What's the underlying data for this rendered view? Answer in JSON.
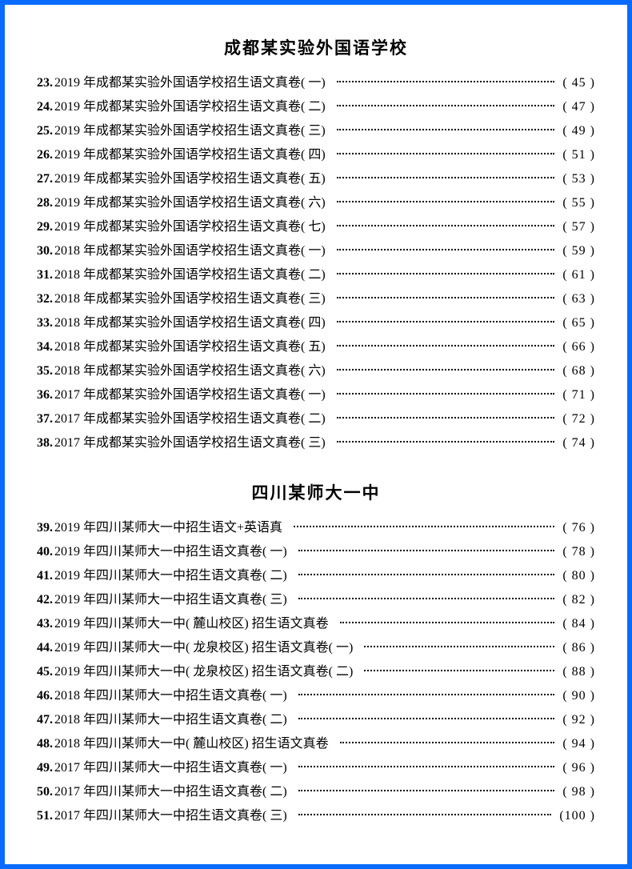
{
  "border_color": "#0a6cff",
  "background_color": "#ffffff",
  "text_color": "#000000",
  "font_family": "SimSun",
  "heading_fontsize_pt": 16,
  "body_fontsize_pt": 12,
  "sections": [
    {
      "heading": "成都某实验外国语学校",
      "entries": [
        {
          "num": "23.",
          "title": "2019 年成都某实验外国语学校招生语文真卷( 一)",
          "page": "( 45 )"
        },
        {
          "num": "24.",
          "title": "2019 年成都某实验外国语学校招生语文真卷( 二)",
          "page": "( 47 )"
        },
        {
          "num": "25.",
          "title": "2019 年成都某实验外国语学校招生语文真卷( 三)",
          "page": "( 49 )"
        },
        {
          "num": "26.",
          "title": "2019 年成都某实验外国语学校招生语文真卷( 四)",
          "page": "( 51 )"
        },
        {
          "num": "27.",
          "title": "2019 年成都某实验外国语学校招生语文真卷( 五)",
          "page": "( 53 )"
        },
        {
          "num": "28.",
          "title": "2019 年成都某实验外国语学校招生语文真卷( 六)",
          "page": "( 55 )"
        },
        {
          "num": "29.",
          "title": "2019 年成都某实验外国语学校招生语文真卷( 七)",
          "page": "( 57 )"
        },
        {
          "num": "30.",
          "title": "2018 年成都某实验外国语学校招生语文真卷( 一)",
          "page": "( 59 )"
        },
        {
          "num": "31.",
          "title": "2018 年成都某实验外国语学校招生语文真卷( 二)",
          "page": "( 61 )"
        },
        {
          "num": "32.",
          "title": "2018 年成都某实验外国语学校招生语文真卷( 三)",
          "page": "( 63 )"
        },
        {
          "num": "33.",
          "title": "2018 年成都某实验外国语学校招生语文真卷( 四)",
          "page": "( 65 )"
        },
        {
          "num": "34.",
          "title": "2018 年成都某实验外国语学校招生语文真卷( 五)",
          "page": "( 66 )"
        },
        {
          "num": "35.",
          "title": "2018 年成都某实验外国语学校招生语文真卷( 六)",
          "page": "( 68 )"
        },
        {
          "num": "36.",
          "title": "2017 年成都某实验外国语学校招生语文真卷( 一)",
          "page": "( 71 )"
        },
        {
          "num": "37.",
          "title": "2017 年成都某实验外国语学校招生语文真卷( 二)",
          "page": "( 72 )"
        },
        {
          "num": "38.",
          "title": "2017 年成都某实验外国语学校招生语文真卷( 三)",
          "page": "( 74 )"
        }
      ]
    },
    {
      "heading": "四川某师大一中",
      "entries": [
        {
          "num": "39.",
          "title": "2019 年四川某师大一中招生语文+英语真",
          "page": "( 76 )"
        },
        {
          "num": "40.",
          "title": "2019 年四川某师大一中招生语文真卷( 一)",
          "page": "( 78 )"
        },
        {
          "num": "41.",
          "title": "2019 年四川某师大一中招生语文真卷( 二)",
          "page": "( 80 )"
        },
        {
          "num": "42.",
          "title": "2019 年四川某师大一中招生语文真卷( 三)",
          "page": "( 82 )"
        },
        {
          "num": "43.",
          "title": "2019 年四川某师大一中( 麓山校区) 招生语文真卷",
          "page": "( 84 )"
        },
        {
          "num": "44.",
          "title": "2019 年四川某师大一中( 龙泉校区) 招生语文真卷( 一)",
          "page": "( 86 )"
        },
        {
          "num": "45.",
          "title": "2019 年四川某师大一中( 龙泉校区) 招生语文真卷( 二)",
          "page": "( 88 )"
        },
        {
          "num": "46.",
          "title": "2018 年四川某师大一中招生语文真卷( 一)",
          "page": "( 90 )"
        },
        {
          "num": "47.",
          "title": "2018 年四川某师大一中招生语文真卷( 二)",
          "page": "( 92 )"
        },
        {
          "num": "48.",
          "title": "2018 年四川某师大一中( 麓山校区) 招生语文真卷",
          "page": "( 94 )"
        },
        {
          "num": "49.",
          "title": "2017 年四川某师大一中招生语文真卷( 一)",
          "page": "( 96 )"
        },
        {
          "num": "50.",
          "title": "2017 年四川某师大一中招生语文真卷( 二)",
          "page": "( 98 )"
        },
        {
          "num": "51.",
          "title": "2017 年四川某师大一中招生语文真卷( 三)",
          "page": "(100 )"
        }
      ]
    }
  ]
}
